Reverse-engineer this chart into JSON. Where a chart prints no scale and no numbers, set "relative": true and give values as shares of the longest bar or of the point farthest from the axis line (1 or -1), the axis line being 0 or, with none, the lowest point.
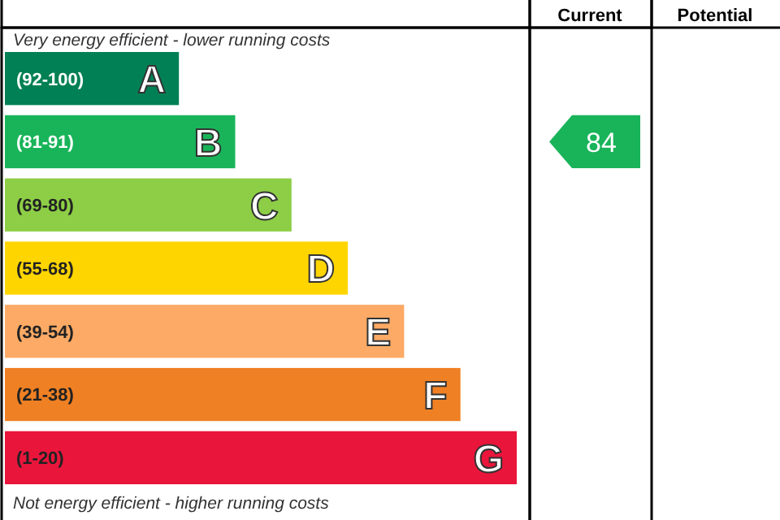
{
  "chart_data": {
    "type": "bar",
    "orientation": "horizontal",
    "relative": true,
    "categories": [
      "A",
      "B",
      "C",
      "D",
      "E",
      "F",
      "G"
    ],
    "values": [
      0.34,
      0.45,
      0.56,
      0.67,
      0.78,
      0.89,
      1
    ],
    "colors": [
      "#008054",
      "#19b459",
      "#8dce46",
      "#ffd500",
      "#fcaa65",
      "#ef8023",
      "#e9153b"
    ],
    "annotations": [
      "Very energy efficient - lower running costs",
      "Not energy efficient - higher running costs",
      "Current",
      "Potential",
      "(92-100)",
      "(81-91)",
      "(69-80)",
      "(55-68)",
      "(39-54)",
      "(21-38)",
      "(1-20)",
      "84"
    ]
  }
}
